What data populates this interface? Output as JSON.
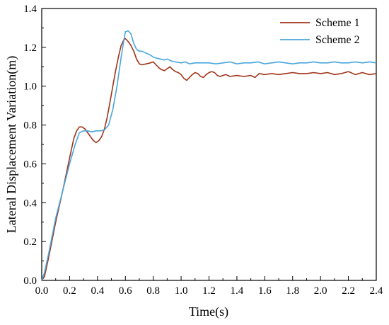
{
  "chart_data": {
    "type": "line",
    "title": "",
    "xlabel": "Time(s)",
    "ylabel": "Lateral Displacement Variation(m)",
    "xlim": [
      0.0,
      2.4
    ],
    "ylim": [
      0.0,
      1.4
    ],
    "x_ticks": [
      "0.0",
      "0.2",
      "0.4",
      "0.6",
      "0.8",
      "1.0",
      "1.2",
      "1.4",
      "1.6",
      "1.8",
      "2.0",
      "2.2",
      "2.4"
    ],
    "y_ticks": [
      "0.0",
      "0.2",
      "0.4",
      "0.6",
      "0.8",
      "1.0",
      "1.2",
      "1.4"
    ],
    "grid": false,
    "legend_position": "top-right",
    "series": [
      {
        "name": "Scheme 1",
        "color": "#a0341a",
        "x": [
          0,
          0.02,
          0.05,
          0.1,
          0.15,
          0.2,
          0.23,
          0.25,
          0.27,
          0.29,
          0.31,
          0.33,
          0.35,
          0.37,
          0.39,
          0.41,
          0.43,
          0.45,
          0.47,
          0.49,
          0.51,
          0.53,
          0.55,
          0.57,
          0.59,
          0.6,
          0.62,
          0.64,
          0.66,
          0.68,
          0.7,
          0.72,
          0.75,
          0.78,
          0.8,
          0.82,
          0.84,
          0.86,
          0.88,
          0.9,
          0.92,
          0.94,
          0.96,
          0.98,
          1.0,
          1.02,
          1.04,
          1.06,
          1.08,
          1.1,
          1.12,
          1.14,
          1.16,
          1.18,
          1.2,
          1.22,
          1.24,
          1.26,
          1.28,
          1.3,
          1.32,
          1.35,
          1.4,
          1.45,
          1.5,
          1.53,
          1.56,
          1.6,
          1.65,
          1.7,
          1.75,
          1.8,
          1.85,
          1.9,
          1.95,
          2.0,
          2.05,
          2.1,
          2.15,
          2.2,
          2.25,
          2.3,
          2.35,
          2.4
        ],
        "values": [
          0.0,
          0.02,
          0.12,
          0.3,
          0.46,
          0.63,
          0.73,
          0.77,
          0.79,
          0.79,
          0.78,
          0.76,
          0.74,
          0.72,
          0.71,
          0.72,
          0.74,
          0.78,
          0.84,
          0.92,
          1.0,
          1.08,
          1.15,
          1.21,
          1.24,
          1.245,
          1.23,
          1.21,
          1.18,
          1.14,
          1.115,
          1.11,
          1.115,
          1.12,
          1.125,
          1.11,
          1.095,
          1.085,
          1.08,
          1.09,
          1.1,
          1.085,
          1.075,
          1.07,
          1.06,
          1.04,
          1.03,
          1.045,
          1.06,
          1.07,
          1.065,
          1.05,
          1.045,
          1.06,
          1.07,
          1.075,
          1.07,
          1.055,
          1.05,
          1.055,
          1.06,
          1.05,
          1.055,
          1.05,
          1.055,
          1.045,
          1.065,
          1.06,
          1.065,
          1.06,
          1.065,
          1.07,
          1.065,
          1.065,
          1.07,
          1.065,
          1.07,
          1.06,
          1.065,
          1.075,
          1.06,
          1.07,
          1.06,
          1.065
        ]
      },
      {
        "name": "Scheme 2",
        "color": "#4aa6dd",
        "x": [
          0,
          0.02,
          0.05,
          0.1,
          0.15,
          0.2,
          0.24,
          0.27,
          0.3,
          0.33,
          0.36,
          0.39,
          0.42,
          0.45,
          0.48,
          0.51,
          0.54,
          0.57,
          0.59,
          0.6,
          0.62,
          0.64,
          0.66,
          0.68,
          0.7,
          0.72,
          0.75,
          0.78,
          0.8,
          0.82,
          0.85,
          0.88,
          0.9,
          0.93,
          0.96,
          1.0,
          1.03,
          1.06,
          1.1,
          1.15,
          1.2,
          1.25,
          1.3,
          1.35,
          1.4,
          1.45,
          1.5,
          1.55,
          1.6,
          1.65,
          1.7,
          1.75,
          1.8,
          1.85,
          1.9,
          1.95,
          2.0,
          2.05,
          2.1,
          2.15,
          2.2,
          2.25,
          2.3,
          2.35,
          2.4
        ],
        "values": [
          0.0,
          0.04,
          0.14,
          0.32,
          0.46,
          0.6,
          0.7,
          0.76,
          0.77,
          0.77,
          0.765,
          0.77,
          0.77,
          0.775,
          0.8,
          0.88,
          1.0,
          1.15,
          1.24,
          1.28,
          1.285,
          1.27,
          1.22,
          1.19,
          1.18,
          1.18,
          1.17,
          1.16,
          1.15,
          1.145,
          1.14,
          1.135,
          1.14,
          1.13,
          1.125,
          1.12,
          1.125,
          1.115,
          1.12,
          1.12,
          1.12,
          1.115,
          1.12,
          1.125,
          1.115,
          1.12,
          1.12,
          1.125,
          1.115,
          1.12,
          1.125,
          1.12,
          1.115,
          1.12,
          1.12,
          1.125,
          1.12,
          1.12,
          1.125,
          1.12,
          1.12,
          1.125,
          1.12,
          1.125,
          1.12
        ]
      }
    ]
  }
}
